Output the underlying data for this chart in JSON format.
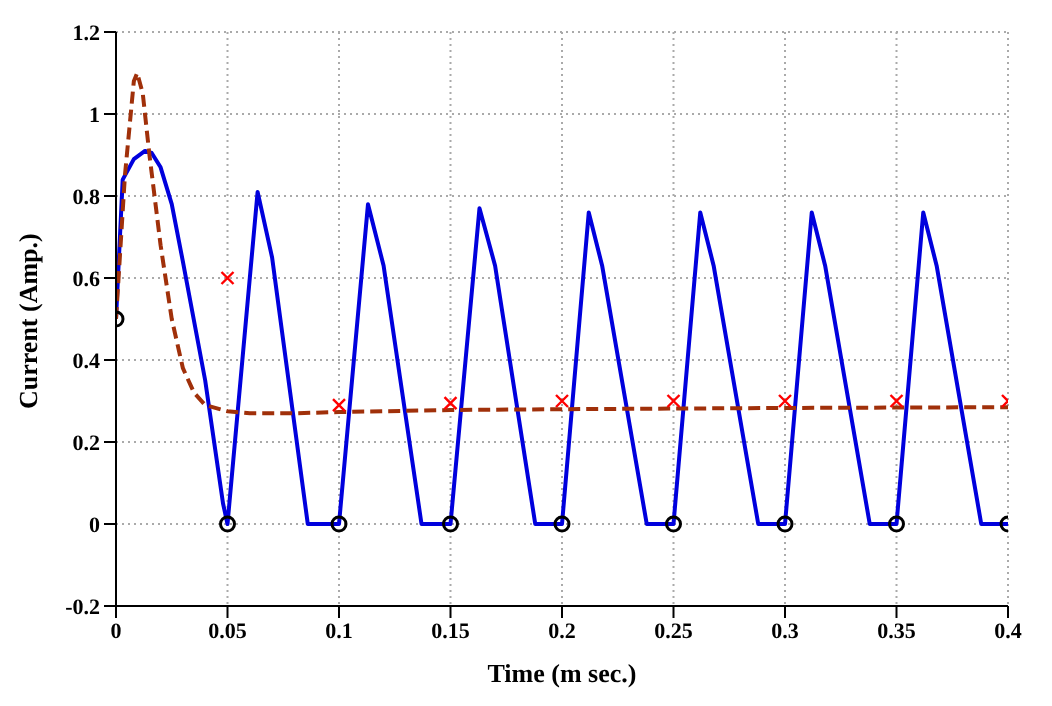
{
  "chart_data": {
    "type": "line",
    "xlabel": "Time (m sec.)",
    "ylabel": "Current (Amp.)",
    "xlim": [
      0,
      0.4
    ],
    "ylim": [
      -0.2,
      1.2
    ],
    "xticks": [
      0,
      0.05,
      0.1,
      0.15,
      0.2,
      0.25,
      0.3,
      0.35,
      0.4
    ],
    "yticks": [
      -0.2,
      0,
      0.2,
      0.4,
      0.6,
      0.8,
      1,
      1.2
    ],
    "grid": true,
    "series": [
      {
        "type": "line",
        "color": "#0000dd",
        "line_style": "solid",
        "marker": "none",
        "x": [
          0,
          0.003,
          0.008,
          0.013,
          0.016,
          0.02,
          0.025,
          0.03,
          0.04,
          0.048,
          0.05,
          0.0635,
          0.07,
          0.086,
          0.1,
          0.113,
          0.12,
          0.137,
          0.15,
          0.163,
          0.17,
          0.188,
          0.2,
          0.212,
          0.218,
          0.238,
          0.25,
          0.262,
          0.268,
          0.288,
          0.3,
          0.312,
          0.318,
          0.338,
          0.35,
          0.362,
          0.368,
          0.388,
          0.4
        ],
        "values": [
          0.5,
          0.84,
          0.89,
          0.91,
          0.905,
          0.87,
          0.78,
          0.64,
          0.35,
          0.05,
          0,
          0.81,
          0.65,
          0,
          0,
          0.78,
          0.63,
          0,
          0,
          0.77,
          0.63,
          0,
          0,
          0.76,
          0.63,
          0,
          0,
          0.76,
          0.63,
          0,
          0,
          0.76,
          0.63,
          0,
          0,
          0.76,
          0.63,
          0,
          0
        ]
      },
      {
        "type": "line",
        "color": "#a0300a",
        "line_style": "dashed",
        "marker": "none",
        "x": [
          0,
          0.004,
          0.008,
          0.0095,
          0.012,
          0.015,
          0.02,
          0.025,
          0.03,
          0.035,
          0.04,
          0.05,
          0.06,
          0.08,
          0.1,
          0.15,
          0.2,
          0.3,
          0.4
        ],
        "values": [
          0.5,
          0.85,
          1.08,
          1.1,
          1.05,
          0.9,
          0.68,
          0.5,
          0.38,
          0.32,
          0.29,
          0.275,
          0.27,
          0.27,
          0.273,
          0.278,
          0.28,
          0.283,
          0.285
        ]
      },
      {
        "type": "scatter",
        "color": "#000000",
        "marker": "circle",
        "x": [
          0,
          0.05,
          0.1,
          0.15,
          0.2,
          0.25,
          0.3,
          0.35,
          0.4
        ],
        "values": [
          0.5,
          0,
          0,
          0,
          0,
          0,
          0,
          0,
          0
        ]
      },
      {
        "type": "scatter",
        "color": "#ff0000",
        "marker": "cross",
        "x": [
          0.05,
          0.1,
          0.15,
          0.2,
          0.25,
          0.3,
          0.35,
          0.4
        ],
        "values": [
          0.6,
          0.29,
          0.295,
          0.3,
          0.3,
          0.3,
          0.3,
          0.3
        ]
      }
    ]
  }
}
